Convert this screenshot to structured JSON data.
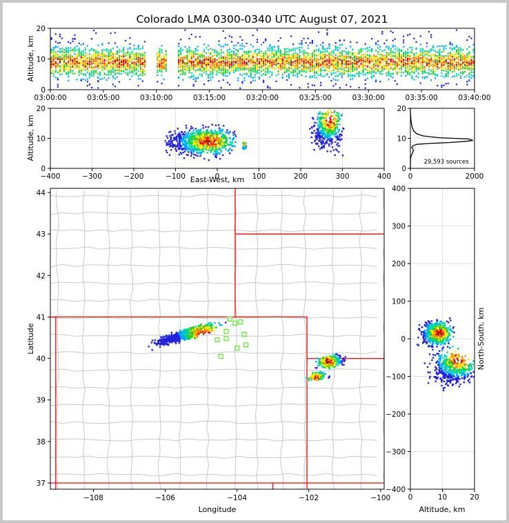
{
  "window": {
    "bg": "#c8c8c8",
    "figure_bg": "#ffffff"
  },
  "title": "Colorado LMA 0300-0340 UTC August 07, 2021",
  "source_count_label": "29,593 sources",
  "colors": {
    "state_border": "#ff0000",
    "county_border": "#c8c8c8",
    "station": "#55ee22",
    "gradient": [
      "#2222dd",
      "#00a8ff",
      "#00d8b0",
      "#22cc33",
      "#ffee00",
      "#ff8800",
      "#ee0000",
      "#8b1a1a"
    ],
    "grid": "#e0e0e0",
    "profile_line": "#000000"
  },
  "chart_data": [
    {
      "id": "time_height",
      "type": "heatmap",
      "xlabel": "",
      "ylabel": "Altitude, km",
      "x_tick_labels": [
        "03:00:00",
        "03:05:00",
        "03:10:00",
        "03:15:00",
        "03:20:00",
        "03:25:00",
        "03:30:00",
        "03:35:00",
        "03:40:00"
      ],
      "xlim_minutes": [
        0,
        40
      ],
      "ylim": [
        0,
        20
      ],
      "y_ticks": [
        0,
        10,
        20
      ],
      "density_core_altitude_km": 9,
      "gaps_minutes": [
        [
          9.0,
          10.0
        ],
        [
          10.9,
          12.0
        ]
      ]
    },
    {
      "id": "east_west_height",
      "type": "heatmap",
      "xlabel": "East-West, km",
      "ylabel": "Altitude, km",
      "xlim": [
        -400,
        400
      ],
      "x_ticks": [
        -400,
        -300,
        -200,
        -100,
        0,
        100,
        200,
        300,
        400
      ],
      "ylim": [
        0,
        20
      ],
      "y_ticks": [
        0,
        10,
        20
      ],
      "clusters": [
        {
          "x_range_km": [
            -120,
            40
          ],
          "z_range_km": [
            4,
            14
          ],
          "peak_x_km": -20,
          "peak_z_km": 9
        },
        {
          "x_range_km": [
            60,
            70
          ],
          "z_range_km": [
            6,
            9
          ],
          "peak_x_km": 65,
          "peak_z_km": 8
        },
        {
          "x_range_km": [
            225,
            300
          ],
          "z_range_km": [
            6,
            20
          ],
          "peak_x_km": 270,
          "peak_z_km": 16
        }
      ]
    },
    {
      "id": "altitude_histogram",
      "type": "line",
      "xlabel": "",
      "ylabel": "",
      "xlim": [
        0,
        2000
      ],
      "x_ticks": [
        0,
        2000
      ],
      "ylim": [
        0,
        20
      ],
      "y_ticks": [
        0,
        10,
        20
      ],
      "x": [
        0,
        5,
        20,
        60,
        100,
        40,
        80,
        200,
        600,
        1200,
        1750,
        1950,
        1800,
        900,
        400,
        200,
        100,
        50,
        20,
        5,
        0
      ],
      "y": [
        0,
        3,
        4,
        5,
        6,
        7,
        7.5,
        8,
        8.3,
        8.6,
        9.0,
        9.3,
        9.8,
        10.2,
        10.8,
        11.5,
        12.5,
        14,
        16,
        18,
        20
      ]
    },
    {
      "id": "plan_view",
      "type": "scatter",
      "xlabel": "Longitude",
      "ylabel": "Latitude",
      "xlim": [
        -109.2,
        -99.9
      ],
      "x_ticks": [
        -108,
        -106,
        -104,
        -102,
        -100
      ],
      "ylim": [
        36.85,
        44.1
      ],
      "y_ticks": [
        37,
        38,
        39,
        40,
        41,
        42,
        43,
        44
      ],
      "stations": [
        [
          -104.2,
          40.95
        ],
        [
          -104.05,
          40.85
        ],
        [
          -103.9,
          40.88
        ],
        [
          -104.3,
          40.65
        ],
        [
          -104.55,
          40.45
        ],
        [
          -104.3,
          40.48
        ],
        [
          -103.8,
          40.58
        ],
        [
          -103.75,
          40.33
        ],
        [
          -104.0,
          40.25
        ],
        [
          -104.45,
          40.05
        ]
      ],
      "clusters": [
        {
          "lon_range": [
            -106.1,
            -104.8
          ],
          "lat_range": [
            40.3,
            40.85
          ],
          "peak_lon": -104.9,
          "peak_lat": 40.6
        },
        {
          "lon_range": [
            -101.7,
            -101.1
          ],
          "lat_range": [
            39.75,
            40.1
          ],
          "peak_lon": -101.45,
          "peak_lat": 39.92
        },
        {
          "lon_range": [
            -102.0,
            -101.5
          ],
          "lat_range": [
            39.45,
            39.7
          ],
          "peak_lon": -101.8,
          "peak_lat": 39.55
        }
      ]
    },
    {
      "id": "altitude_north_south",
      "type": "heatmap",
      "xlabel": "Altitude, km",
      "ylabel": "North-South, km",
      "xlim": [
        0,
        20
      ],
      "x_ticks": [
        0,
        10,
        20
      ],
      "ylim": [
        -400,
        400
      ],
      "y_ticks": [
        -400,
        -300,
        -200,
        -100,
        0,
        100,
        200,
        300,
        400
      ],
      "clusters": [
        {
          "z_range_km": [
            3,
            13
          ],
          "y_range_km": [
            -20,
            50
          ],
          "peak_z_km": 9,
          "peak_y_km": 15
        },
        {
          "z_range_km": [
            6,
            20
          ],
          "y_range_km": [
            -130,
            -30
          ],
          "peak_z_km": 15,
          "peak_y_km": -55
        }
      ]
    }
  ]
}
